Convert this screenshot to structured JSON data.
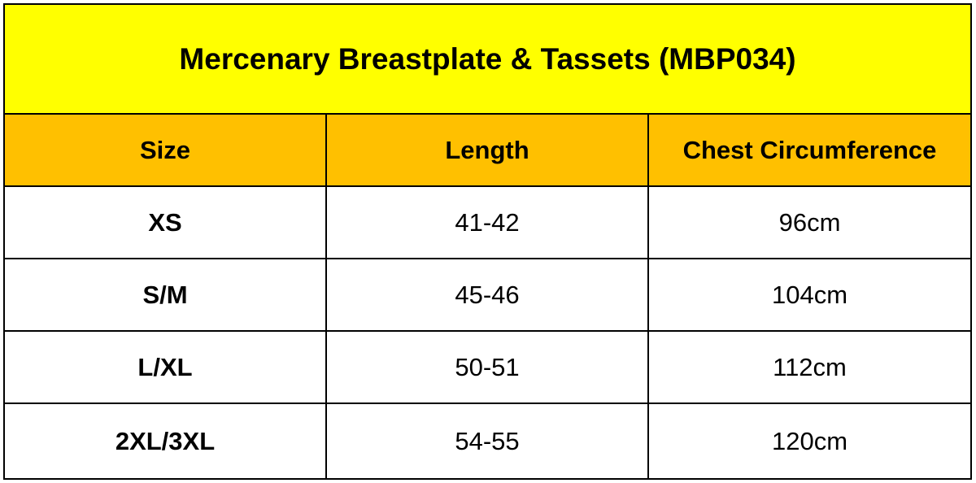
{
  "title": "Mercenary Breastplate & Tassets (MBP034)",
  "colors": {
    "title_background": "#ffff00",
    "header_background": "#ffc000",
    "border": "#000000"
  },
  "table": {
    "headers": [
      "Size",
      "Length",
      "Chest Circumference"
    ],
    "rows": [
      [
        "XS",
        "41-42",
        "96cm"
      ],
      [
        "S/M",
        "45-46",
        "104cm"
      ],
      [
        "L/XL",
        "50-51",
        "112cm"
      ],
      [
        "2XL/3XL",
        "54-55",
        "120cm"
      ]
    ]
  }
}
